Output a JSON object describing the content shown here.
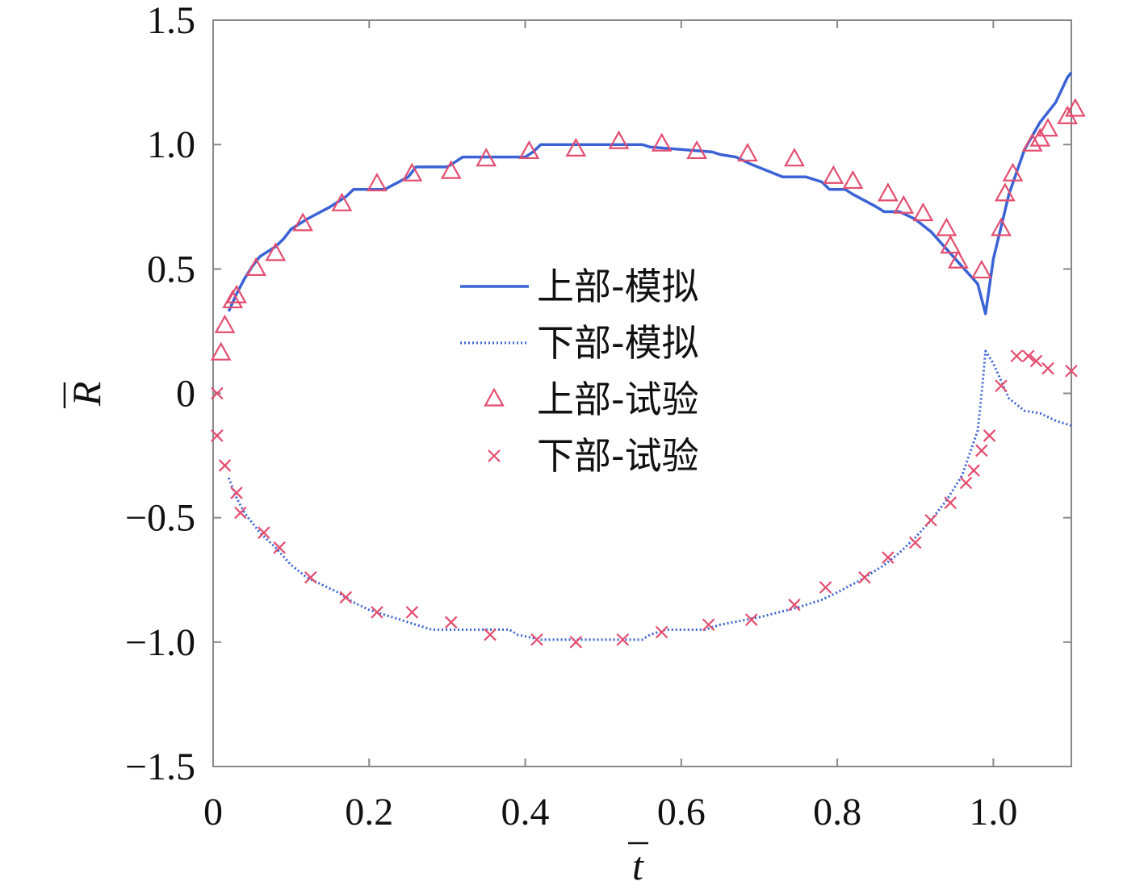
{
  "chart_data": {
    "type": "line",
    "title": "",
    "xlabel": "t",
    "ylabel": "R",
    "xlim": [
      0,
      1.1
    ],
    "ylim": [
      -1.5,
      1.5
    ],
    "xticks": [
      0,
      0.2,
      0.4,
      0.6,
      0.8,
      1.0
    ],
    "xtick_labels": [
      "0",
      "0.2",
      "0.4",
      "0.6",
      "0.8",
      "1.0"
    ],
    "yticks": [
      1.5,
      1.0,
      0.5,
      0,
      -0.5,
      -1.0,
      -1.5
    ],
    "ytick_labels": [
      "1.5",
      "1.0",
      "0.5",
      "0",
      "−0.5",
      "−1.0",
      "−1.5"
    ],
    "grid": false,
    "legend_position": "center",
    "series": [
      {
        "name": "上部-模拟",
        "style": "solid",
        "color": "#3b63d6",
        "x": [
          0.02,
          0.03,
          0.04,
          0.05,
          0.06,
          0.07,
          0.08,
          0.09,
          0.1,
          0.12,
          0.15,
          0.17,
          0.18,
          0.22,
          0.25,
          0.26,
          0.3,
          0.31,
          0.32,
          0.4,
          0.41,
          0.42,
          0.55,
          0.56,
          0.6,
          0.64,
          0.65,
          0.67,
          0.69,
          0.73,
          0.76,
          0.78,
          0.79,
          0.81,
          0.82,
          0.85,
          0.86,
          0.88,
          0.9,
          0.92,
          0.94,
          0.96,
          0.98,
          0.99,
          1.0,
          1.02,
          1.04,
          1.06,
          1.08,
          1.095,
          1.1
        ],
        "values": [
          0.33,
          0.4,
          0.46,
          0.51,
          0.55,
          0.57,
          0.59,
          0.62,
          0.66,
          0.7,
          0.75,
          0.79,
          0.82,
          0.82,
          0.87,
          0.91,
          0.91,
          0.93,
          0.95,
          0.95,
          0.97,
          1.0,
          1.0,
          0.99,
          0.98,
          0.97,
          0.96,
          0.95,
          0.92,
          0.87,
          0.87,
          0.85,
          0.82,
          0.82,
          0.8,
          0.75,
          0.73,
          0.73,
          0.7,
          0.65,
          0.58,
          0.51,
          0.44,
          0.32,
          0.54,
          0.8,
          0.98,
          1.09,
          1.17,
          1.27,
          1.29
        ]
      },
      {
        "name": "下部-模拟",
        "style": "dotted",
        "color": "#3b63d6",
        "x": [
          0.02,
          0.03,
          0.04,
          0.05,
          0.06,
          0.07,
          0.08,
          0.1,
          0.12,
          0.14,
          0.16,
          0.18,
          0.2,
          0.23,
          0.26,
          0.28,
          0.3,
          0.38,
          0.39,
          0.42,
          0.55,
          0.56,
          0.58,
          0.63,
          0.65,
          0.7,
          0.75,
          0.78,
          0.8,
          0.83,
          0.86,
          0.88,
          0.9,
          0.92,
          0.94,
          0.96,
          0.98,
          0.985,
          0.99,
          1.0,
          1.02,
          1.04,
          1.06,
          1.08,
          1.1
        ],
        "values": [
          -0.34,
          -0.42,
          -0.48,
          -0.52,
          -0.56,
          -0.59,
          -0.62,
          -0.69,
          -0.74,
          -0.77,
          -0.8,
          -0.84,
          -0.87,
          -0.9,
          -0.93,
          -0.95,
          -0.95,
          -0.95,
          -0.97,
          -0.99,
          -0.99,
          -0.97,
          -0.95,
          -0.95,
          -0.93,
          -0.9,
          -0.86,
          -0.83,
          -0.8,
          -0.75,
          -0.69,
          -0.64,
          -0.58,
          -0.51,
          -0.43,
          -0.33,
          -0.15,
          0.0,
          0.17,
          0.12,
          -0.02,
          -0.07,
          -0.08,
          -0.11,
          -0.13
        ]
      },
      {
        "name": "上部-试验",
        "style": "triangle",
        "color": "#e34d6e",
        "x": [
          0.01,
          0.015,
          0.025,
          0.03,
          0.055,
          0.08,
          0.115,
          0.165,
          0.21,
          0.255,
          0.305,
          0.35,
          0.405,
          0.465,
          0.52,
          0.575,
          0.62,
          0.685,
          0.745,
          0.795,
          0.82,
          0.865,
          0.885,
          0.91,
          0.94,
          0.945,
          0.955,
          0.985,
          1.01,
          1.015,
          1.025,
          1.05,
          1.06,
          1.07,
          1.095,
          1.105
        ],
        "values": [
          0.16,
          0.27,
          0.37,
          0.39,
          0.5,
          0.56,
          0.68,
          0.76,
          0.84,
          0.88,
          0.89,
          0.94,
          0.97,
          0.98,
          1.01,
          1.0,
          0.97,
          0.96,
          0.94,
          0.87,
          0.85,
          0.8,
          0.75,
          0.72,
          0.66,
          0.59,
          0.53,
          0.49,
          0.66,
          0.8,
          0.88,
          1.0,
          1.02,
          1.06,
          1.11,
          1.14
        ]
      },
      {
        "name": "下部-试验",
        "style": "cross",
        "color": "#e34d6e",
        "x": [
          0.005,
          0.005,
          0.015,
          0.03,
          0.035,
          0.065,
          0.085,
          0.125,
          0.17,
          0.21,
          0.255,
          0.305,
          0.355,
          0.415,
          0.465,
          0.525,
          0.575,
          0.635,
          0.69,
          0.745,
          0.785,
          0.835,
          0.865,
          0.9,
          0.92,
          0.945,
          0.965,
          0.975,
          0.985,
          0.995,
          1.01,
          1.03,
          1.045,
          1.055,
          1.07,
          1.1
        ],
        "values": [
          0.0,
          -0.17,
          -0.29,
          -0.4,
          -0.48,
          -0.56,
          -0.62,
          -0.74,
          -0.82,
          -0.88,
          -0.88,
          -0.92,
          -0.97,
          -0.99,
          -1.0,
          -0.99,
          -0.96,
          -0.93,
          -0.91,
          -0.85,
          -0.78,
          -0.74,
          -0.66,
          -0.6,
          -0.51,
          -0.44,
          -0.36,
          -0.31,
          -0.23,
          -0.17,
          0.03,
          0.15,
          0.15,
          0.13,
          0.1,
          0.09
        ]
      }
    ]
  }
}
